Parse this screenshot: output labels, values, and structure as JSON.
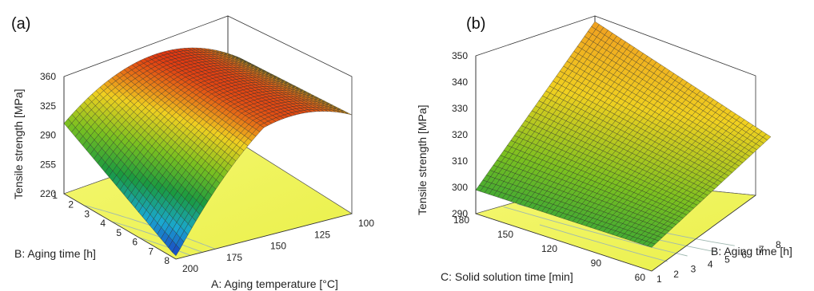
{
  "chart_data": [
    {
      "type": "surface",
      "panel_label": "(a)",
      "zlabel": "Tensile strength [MPa]",
      "xlabel": "A: Aging temperature [°C]",
      "ylabel": "B: Aging time [h]",
      "x_ticks": [
        "200",
        "175",
        "150",
        "125",
        "100"
      ],
      "y_ticks": [
        "1",
        "2",
        "3",
        "4",
        "5",
        "6",
        "7",
        "8"
      ],
      "z_ticks": [
        "220",
        "255",
        "290",
        "325",
        "360"
      ],
      "xlim": [
        100,
        200
      ],
      "ylim": [
        1,
        8
      ],
      "zlim": [
        220,
        360
      ],
      "corner_values": [
        {
          "temperature": 200,
          "time": 1,
          "strength": 304
        },
        {
          "temperature": 100,
          "time": 1,
          "strength": 322
        },
        {
          "temperature": 200,
          "time": 8,
          "strength": 232
        },
        {
          "temperature": 100,
          "time": 8,
          "strength": 305
        }
      ],
      "peak": {
        "temperature": 150,
        "time": 1,
        "strength": 358
      },
      "colormap": [
        "#1a2fbf",
        "#1aa8d0",
        "#1a9a40",
        "#7ac020",
        "#f0d020",
        "#e03010"
      ]
    },
    {
      "type": "surface",
      "panel_label": "(b)",
      "zlabel": "Tensile strength [MPa]",
      "xlabel": "C: Solid solution time [min]",
      "ylabel": "B: Aging time [h]",
      "x_ticks": [
        "180",
        "150",
        "120",
        "90",
        "60"
      ],
      "y_ticks": [
        "1",
        "2",
        "3",
        "4",
        "5",
        "6",
        "7",
        "8"
      ],
      "z_ticks": [
        "290",
        "300",
        "310",
        "320",
        "330",
        "340",
        "350"
      ],
      "xlim": [
        60,
        180
      ],
      "ylim": [
        1,
        8
      ],
      "zlim": [
        290,
        350
      ],
      "corner_values": [
        {
          "solution_time": 180,
          "time": 1,
          "strength": 299
        },
        {
          "solution_time": 60,
          "time": 1,
          "strength": 299
        },
        {
          "solution_time": 180,
          "time": 8,
          "strength": 350
        },
        {
          "solution_time": 60,
          "time": 8,
          "strength": 328
        }
      ],
      "colormap": [
        "#1a9a40",
        "#7ac020",
        "#f0d020",
        "#f0a020"
      ]
    }
  ]
}
